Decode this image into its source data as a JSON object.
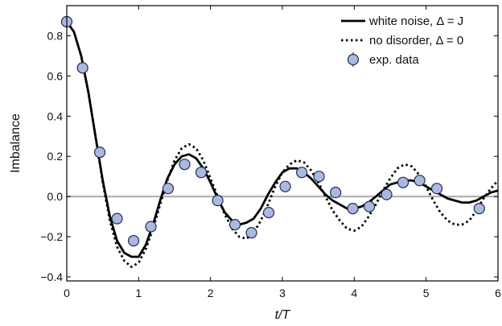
{
  "chart_data": {
    "type": "line",
    "xlabel": "t/T",
    "ylabel": "Imbalance",
    "xlim": [
      0,
      6
    ],
    "ylim": [
      -0.42,
      0.95
    ],
    "xticks": [
      0,
      1,
      2,
      3,
      4,
      5,
      6
    ],
    "yticks": [
      -0.4,
      -0.2,
      0.0,
      0.2,
      0.4,
      0.6,
      0.8
    ],
    "ytick_labels": [
      "−0.4",
      "−0.2",
      "0.0",
      "0.2",
      "0.4",
      "0.6",
      "0.8"
    ],
    "reference_line": {
      "y": 0.0,
      "color": "#b3b3b3"
    },
    "legend": {
      "placement": "top-right",
      "entries": [
        {
          "label": "white noise, Δ = J",
          "style": "solid"
        },
        {
          "label": "no disorder, Δ = 0",
          "style": "dotted"
        },
        {
          "label": "exp. data",
          "style": "marker"
        }
      ]
    },
    "series": [
      {
        "style": "solid",
        "color": "#000000",
        "x": [
          0,
          0.1,
          0.2,
          0.3,
          0.4,
          0.5,
          0.6,
          0.7,
          0.8,
          0.9,
          1.0,
          1.1,
          1.2,
          1.3,
          1.4,
          1.5,
          1.6,
          1.7,
          1.8,
          1.9,
          2.0,
          2.1,
          2.2,
          2.3,
          2.4,
          2.5,
          2.6,
          2.7,
          2.8,
          2.9,
          3.0,
          3.1,
          3.2,
          3.3,
          3.4,
          3.5,
          3.6,
          3.7,
          3.8,
          3.9,
          4.0,
          4.1,
          4.2,
          4.3,
          4.4,
          4.5,
          4.6,
          4.7,
          4.8,
          4.9,
          5.0,
          5.1,
          5.2,
          5.3,
          5.4,
          5.5,
          5.6,
          5.7,
          5.8,
          5.9,
          6.0
        ],
        "y": [
          0.87,
          0.82,
          0.7,
          0.52,
          0.3,
          0.08,
          -0.1,
          -0.22,
          -0.28,
          -0.3,
          -0.3,
          -0.24,
          -0.14,
          -0.02,
          0.09,
          0.16,
          0.2,
          0.21,
          0.19,
          0.14,
          0.07,
          -0.01,
          -0.08,
          -0.12,
          -0.14,
          -0.13,
          -0.11,
          -0.06,
          0.01,
          0.07,
          0.12,
          0.14,
          0.14,
          0.12,
          0.09,
          0.05,
          0.01,
          -0.02,
          -0.04,
          -0.06,
          -0.06,
          -0.05,
          -0.03,
          0.0,
          0.03,
          0.06,
          0.07,
          0.08,
          0.08,
          0.07,
          0.05,
          0.03,
          0.01,
          -0.01,
          -0.02,
          -0.03,
          -0.03,
          -0.02,
          0.0,
          0.02,
          0.03
        ]
      },
      {
        "style": "dotted",
        "color": "#000000",
        "x": [
          0,
          0.1,
          0.2,
          0.3,
          0.4,
          0.5,
          0.6,
          0.7,
          0.8,
          0.9,
          1.0,
          1.1,
          1.2,
          1.3,
          1.4,
          1.5,
          1.6,
          1.7,
          1.8,
          1.9,
          2.0,
          2.1,
          2.2,
          2.3,
          2.4,
          2.5,
          2.6,
          2.7,
          2.8,
          2.9,
          3.0,
          3.1,
          3.2,
          3.3,
          3.4,
          3.5,
          3.6,
          3.7,
          3.8,
          3.9,
          4.0,
          4.1,
          4.2,
          4.3,
          4.4,
          4.5,
          4.6,
          4.7,
          4.8,
          4.9,
          5.0,
          5.1,
          5.2,
          5.3,
          5.4,
          5.5,
          5.6,
          5.7,
          5.8,
          5.9,
          6.0
        ],
        "y": [
          0.87,
          0.82,
          0.7,
          0.52,
          0.3,
          0.07,
          -0.12,
          -0.25,
          -0.32,
          -0.35,
          -0.33,
          -0.26,
          -0.16,
          -0.04,
          0.08,
          0.18,
          0.24,
          0.26,
          0.24,
          0.18,
          0.09,
          0.0,
          -0.09,
          -0.16,
          -0.2,
          -0.21,
          -0.18,
          -0.12,
          -0.04,
          0.05,
          0.12,
          0.16,
          0.18,
          0.17,
          0.13,
          0.07,
          0.0,
          -0.07,
          -0.12,
          -0.16,
          -0.17,
          -0.15,
          -0.1,
          -0.04,
          0.03,
          0.09,
          0.14,
          0.16,
          0.15,
          0.11,
          0.05,
          -0.02,
          -0.08,
          -0.12,
          -0.14,
          -0.14,
          -0.12,
          -0.07,
          -0.01,
          0.04,
          0.08
        ]
      },
      {
        "style": "marker",
        "color": "#aab9dd",
        "x": [
          0.0,
          0.22,
          0.46,
          0.7,
          0.93,
          1.17,
          1.41,
          1.64,
          1.87,
          2.1,
          2.34,
          2.57,
          2.81,
          3.04,
          3.27,
          3.51,
          3.74,
          3.98,
          4.21,
          4.45,
          4.68,
          4.91,
          5.15,
          5.74
        ],
        "y": [
          0.87,
          0.64,
          0.22,
          -0.11,
          -0.22,
          -0.15,
          0.04,
          0.16,
          0.12,
          -0.02,
          -0.14,
          -0.18,
          -0.08,
          0.05,
          0.12,
          0.1,
          0.02,
          -0.06,
          -0.05,
          0.01,
          0.07,
          0.08,
          0.04,
          -0.06
        ],
        "yerr": [
          0.012,
          0.012,
          0.012,
          0.012,
          0.012,
          0.012,
          0.012,
          0.012,
          0.012,
          0.012,
          0.012,
          0.012,
          0.012,
          0.012,
          0.012,
          0.012,
          0.012,
          0.012,
          0.012,
          0.012,
          0.012,
          0.012,
          0.012,
          0.012
        ]
      }
    ]
  }
}
